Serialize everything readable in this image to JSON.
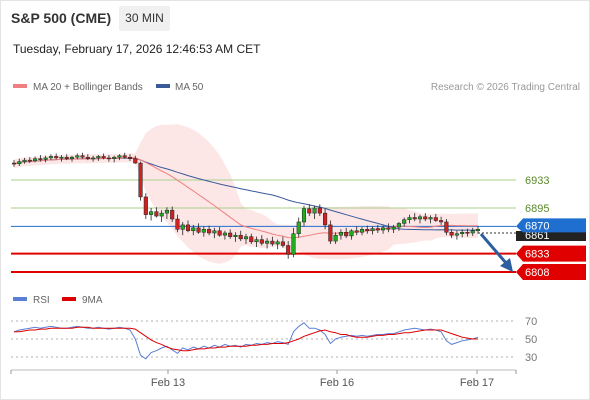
{
  "header": {
    "instrument": "S&P 500 (CME)",
    "timeframe": "30 MIN",
    "timestamp": "Tuesday, February 17, 2026 12:46:53 AM CET"
  },
  "legend": {
    "ma20_label": "MA 20 + Bollinger Bands",
    "ma50_label": "MA 50",
    "credit": "Research © 2026 Trading Central",
    "rsi_label": "RSI",
    "ma9_label": "9MA"
  },
  "colors": {
    "candle_up": "#22aa22",
    "candle_down": "#cc2222",
    "ma20": "#f08080",
    "bollinger_fill": "#fde3e3",
    "ma50": "#3b5a9a",
    "support_line": "#e00000",
    "resistance_line": "#a8d08d",
    "pivot_line": "#1f6fd1",
    "arrow": "#2d5f9e",
    "rsi": "#5b7fd4",
    "rsi_ma9": "#dd0000"
  },
  "chart_data": {
    "type": "candlestick",
    "price_levels": [
      {
        "value": 6933,
        "label": "6933",
        "kind": "resistance"
      },
      {
        "value": 6895,
        "label": "6895",
        "kind": "resistance"
      },
      {
        "value": 6870,
        "label": "6870",
        "kind": "pivot"
      },
      {
        "value": 6861,
        "label": "6861",
        "kind": "last_price"
      },
      {
        "value": 6833,
        "label": "6833",
        "kind": "support"
      },
      {
        "value": 6808,
        "label": "6808",
        "kind": "support"
      }
    ],
    "x_ticks": [
      "Feb 13",
      "Feb 16",
      "Feb 17"
    ],
    "rsi_levels": [
      70,
      50,
      30
    ],
    "candles_ohlc_approx": [
      [
        6956,
        6960,
        6951,
        6955
      ],
      [
        6955,
        6962,
        6952,
        6958
      ],
      [
        6958,
        6963,
        6955,
        6960
      ],
      [
        6960,
        6964,
        6956,
        6959
      ],
      [
        6959,
        6965,
        6957,
        6962
      ],
      [
        6962,
        6967,
        6958,
        6961
      ],
      [
        6961,
        6966,
        6957,
        6963
      ],
      [
        6963,
        6968,
        6960,
        6965
      ],
      [
        6965,
        6969,
        6961,
        6963
      ],
      [
        6963,
        6967,
        6958,
        6964
      ],
      [
        6964,
        6968,
        6960,
        6962
      ],
      [
        6962,
        6966,
        6958,
        6964
      ],
      [
        6964,
        6969,
        6961,
        6966
      ],
      [
        6966,
        6970,
        6962,
        6964
      ],
      [
        6964,
        6968,
        6960,
        6962
      ],
      [
        6962,
        6966,
        6958,
        6963
      ],
      [
        6963,
        6967,
        6959,
        6965
      ],
      [
        6965,
        6969,
        6961,
        6963
      ],
      [
        6963,
        6967,
        6958,
        6962
      ],
      [
        6962,
        6966,
        6957,
        6964
      ],
      [
        6964,
        6968,
        6960,
        6966
      ],
      [
        6966,
        6970,
        6962,
        6964
      ],
      [
        6964,
        6968,
        6959,
        6962
      ],
      [
        6962,
        6966,
        6955,
        6956
      ],
      [
        6956,
        6958,
        6905,
        6910
      ],
      [
        6910,
        6915,
        6880,
        6886
      ],
      [
        6886,
        6895,
        6878,
        6890
      ],
      [
        6890,
        6896,
        6882,
        6884
      ],
      [
        6884,
        6892,
        6876,
        6888
      ],
      [
        6888,
        6896,
        6880,
        6892
      ],
      [
        6892,
        6897,
        6876,
        6880
      ],
      [
        6880,
        6886,
        6862,
        6866
      ],
      [
        6866,
        6876,
        6858,
        6872
      ],
      [
        6872,
        6878,
        6862,
        6864
      ],
      [
        6864,
        6872,
        6858,
        6868
      ],
      [
        6868,
        6874,
        6860,
        6862
      ],
      [
        6862,
        6870,
        6856,
        6866
      ],
      [
        6866,
        6871,
        6858,
        6861
      ],
      [
        6861,
        6868,
        6854,
        6864
      ],
      [
        6864,
        6869,
        6856,
        6858
      ],
      [
        6858,
        6864,
        6852,
        6861
      ],
      [
        6861,
        6866,
        6853,
        6856
      ],
      [
        6856,
        6862,
        6849,
        6858
      ],
      [
        6858,
        6864,
        6850,
        6853
      ],
      [
        6853,
        6860,
        6846,
        6856
      ],
      [
        6856,
        6860,
        6846,
        6849
      ],
      [
        6849,
        6856,
        6842,
        6852
      ],
      [
        6852,
        6858,
        6844,
        6847
      ],
      [
        6847,
        6854,
        6840,
        6850
      ],
      [
        6850,
        6856,
        6843,
        6846
      ],
      [
        6846,
        6852,
        6839,
        6849
      ],
      [
        6849,
        6856,
        6841,
        6844
      ],
      [
        6844,
        6850,
        6826,
        6832
      ],
      [
        6832,
        6868,
        6828,
        6860
      ],
      [
        6860,
        6882,
        6855,
        6876
      ],
      [
        6876,
        6898,
        6870,
        6894
      ],
      [
        6894,
        6900,
        6884,
        6888
      ],
      [
        6888,
        6898,
        6880,
        6895
      ],
      [
        6895,
        6900,
        6884,
        6888
      ],
      [
        6888,
        6894,
        6866,
        6872
      ],
      [
        6872,
        6878,
        6846,
        6850
      ],
      [
        6850,
        6862,
        6846,
        6858
      ],
      [
        6858,
        6866,
        6852,
        6862
      ],
      [
        6862,
        6868,
        6854,
        6857
      ],
      [
        6857,
        6866,
        6852,
        6864
      ],
      [
        6864,
        6870,
        6858,
        6862
      ],
      [
        6862,
        6869,
        6858,
        6866
      ],
      [
        6866,
        6871,
        6860,
        6864
      ],
      [
        6864,
        6870,
        6859,
        6867
      ],
      [
        6867,
        6872,
        6861,
        6865
      ],
      [
        6865,
        6871,
        6860,
        6868
      ],
      [
        6868,
        6874,
        6862,
        6866
      ],
      [
        6866,
        6872,
        6861,
        6869
      ],
      [
        6869,
        6876,
        6864,
        6874
      ],
      [
        6874,
        6882,
        6870,
        6879
      ],
      [
        6879,
        6886,
        6874,
        6882
      ],
      [
        6882,
        6888,
        6877,
        6880
      ],
      [
        6880,
        6886,
        6874,
        6883
      ],
      [
        6883,
        6888,
        6877,
        6880
      ],
      [
        6880,
        6885,
        6874,
        6882
      ],
      [
        6882,
        6887,
        6876,
        6878
      ],
      [
        6878,
        6883,
        6872,
        6876
      ],
      [
        6876,
        6880,
        6858,
        6862
      ],
      [
        6862,
        6866,
        6854,
        6858
      ],
      [
        6858,
        6864,
        6852,
        6860
      ],
      [
        6860,
        6866,
        6855,
        6862
      ],
      [
        6862,
        6867,
        6856,
        6861
      ],
      [
        6861,
        6868,
        6857,
        6864
      ],
      [
        6864,
        6870,
        6860,
        6866
      ]
    ],
    "rsi_series_approx": [
      58,
      60,
      61,
      62,
      63,
      62,
      63,
      64,
      63,
      62,
      62,
      63,
      64,
      63,
      62,
      62,
      63,
      62,
      61,
      62,
      63,
      62,
      60,
      50,
      32,
      28,
      35,
      37,
      40,
      42,
      38,
      34,
      40,
      38,
      41,
      39,
      42,
      40,
      43,
      41,
      44,
      42,
      43,
      41,
      44,
      43,
      45,
      44,
      46,
      45,
      47,
      46,
      44,
      58,
      64,
      68,
      62,
      62,
      60,
      55,
      45,
      50,
      52,
      53,
      54,
      53,
      54,
      53,
      54,
      55,
      55,
      56,
      56,
      58,
      60,
      61,
      62,
      61,
      60,
      61,
      60,
      58,
      48,
      44,
      46,
      48,
      49,
      50,
      52
    ],
    "rsi_ma9_series_approx": [
      58,
      58,
      59,
      60,
      60,
      61,
      61,
      62,
      62,
      62,
      62,
      62,
      63,
      63,
      63,
      62,
      62,
      62,
      62,
      62,
      62,
      62,
      62,
      61,
      57,
      53,
      49,
      46,
      44,
      41,
      39,
      38,
      37,
      37,
      38,
      39,
      39,
      40,
      40,
      41,
      41,
      42,
      42,
      42,
      42,
      43,
      43,
      44,
      44,
      45,
      45,
      45,
      46,
      48,
      50,
      53,
      55,
      57,
      59,
      60,
      58,
      57,
      55,
      55,
      53,
      52,
      52,
      52,
      53,
      54,
      54,
      55,
      55,
      56,
      57,
      57,
      58,
      59,
      60,
      60,
      60,
      60,
      58,
      56,
      54,
      52,
      51,
      50,
      50
    ]
  }
}
